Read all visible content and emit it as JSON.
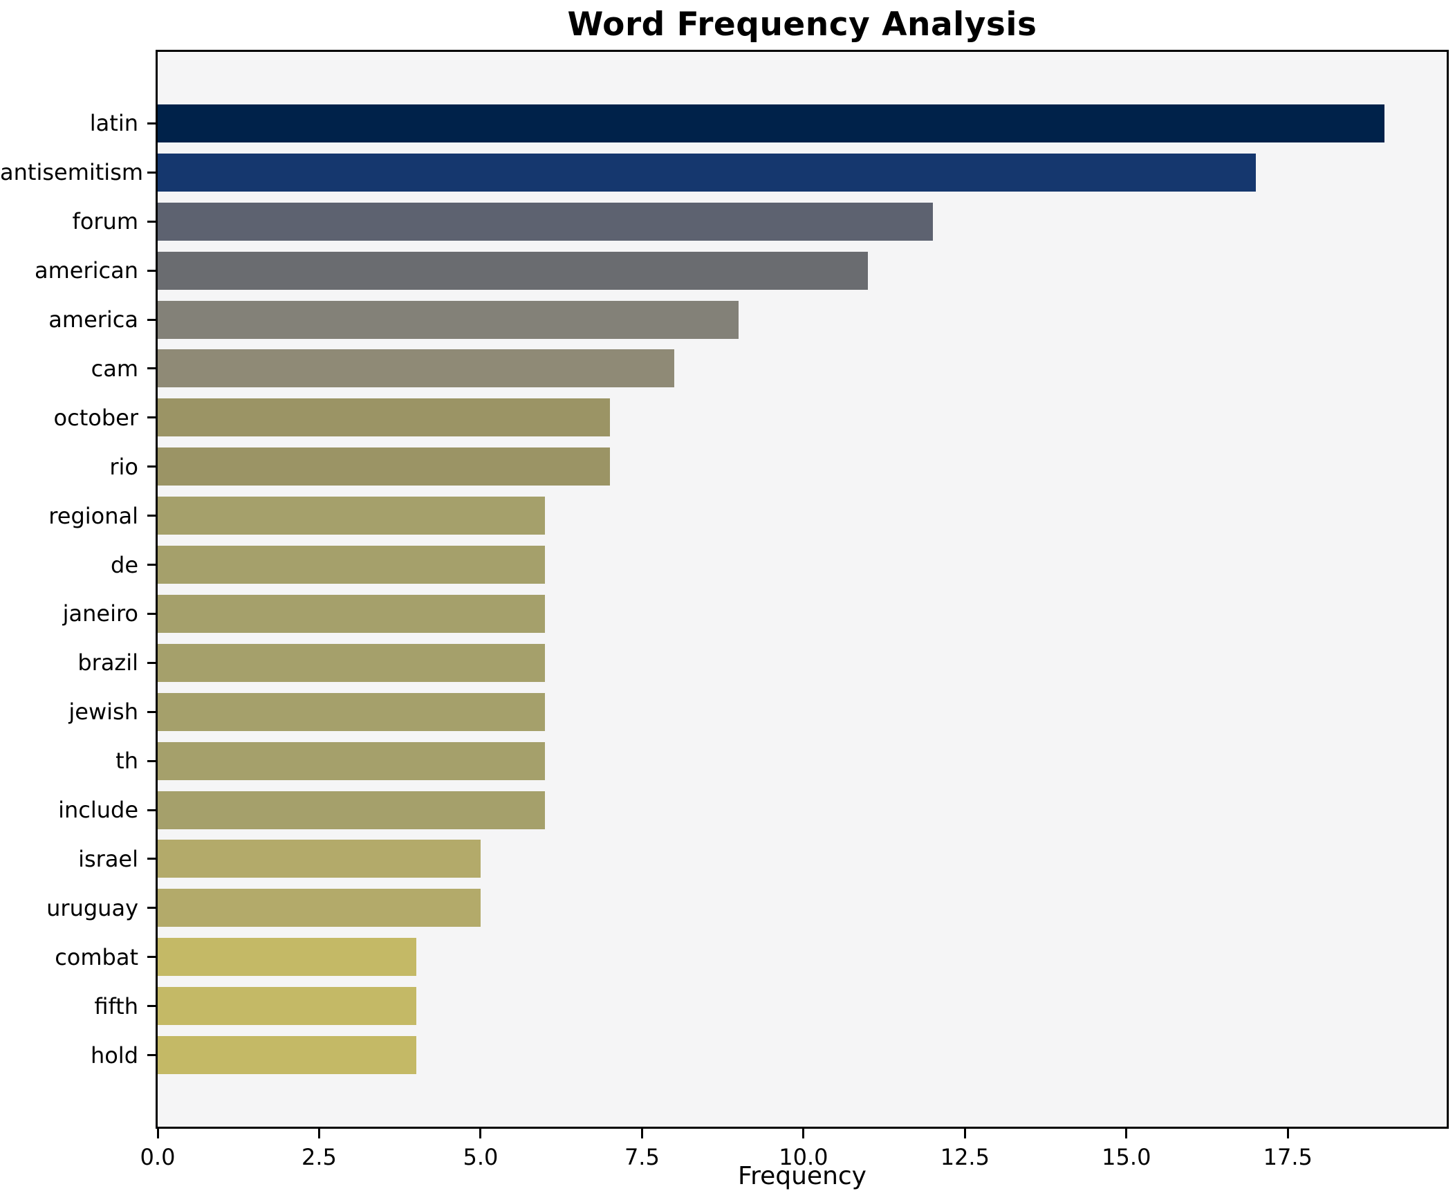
{
  "chart_data": {
    "type": "bar",
    "orientation": "horizontal",
    "title": "Word Frequency Analysis",
    "xlabel": "Frequency",
    "ylabel": "",
    "categories": [
      "latin",
      "antisemitism",
      "forum",
      "american",
      "america",
      "cam",
      "october",
      "rio",
      "regional",
      "de",
      "janeiro",
      "brazil",
      "jewish",
      "th",
      "include",
      "israel",
      "uruguay",
      "combat",
      "fifth",
      "hold"
    ],
    "values": [
      19,
      17,
      12,
      11,
      9,
      8,
      7,
      7,
      6,
      6,
      6,
      6,
      6,
      6,
      6,
      5,
      5,
      4,
      4,
      4
    ],
    "bar_colors": [
      "#00224a",
      "#15376e",
      "#5d6270",
      "#6a6c70",
      "#838178",
      "#8f8a76",
      "#9b9465",
      "#9b9465",
      "#a5a06b",
      "#a5a06b",
      "#a5a06b",
      "#a5a06b",
      "#a5a06b",
      "#a5a06b",
      "#a5a06b",
      "#b3aa6a",
      "#b3aa6a",
      "#c4b966",
      "#c4b966",
      "#c4b966"
    ],
    "xlim": [
      0,
      19.96
    ],
    "xticks": [
      0,
      2.5,
      5,
      7.5,
      10,
      12.5,
      15,
      17.5
    ],
    "xtick_labels": [
      "0.0",
      "2.5",
      "5.0",
      "7.5",
      "10.0",
      "12.5",
      "15.0",
      "17.5"
    ],
    "grid": false,
    "legend": null,
    "colormap": "cividis",
    "plot_bg": "#f5f5f6",
    "figure_bg": "#ffffff",
    "spine_color": "#000000"
  }
}
